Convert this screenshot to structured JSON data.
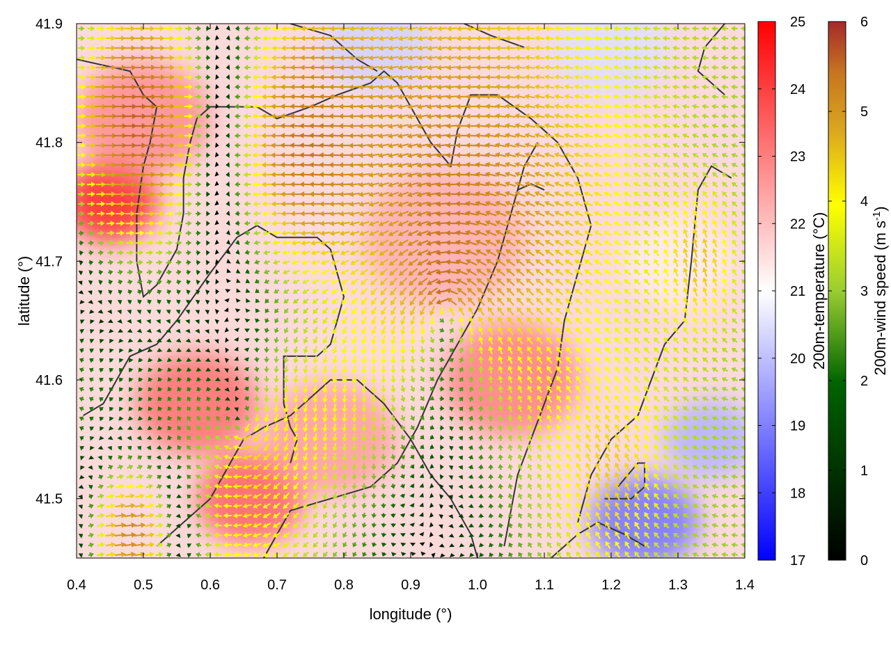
{
  "chart_data": {
    "type": "heatmap",
    "subtype": "vector-field-over-temperature-field",
    "xlabel": "longitude (°)",
    "ylabel": "latitude (°)",
    "xlim": [
      0.4,
      1.4
    ],
    "ylim": [
      41.45,
      41.9
    ],
    "x_ticks": [
      "0.4",
      "0.5",
      "0.6",
      "0.7",
      "0.8",
      "0.9",
      "1.0",
      "1.1",
      "1.2",
      "1.3",
      "1.4"
    ],
    "y_ticks": [
      "41.5",
      "41.6",
      "41.7",
      "41.8",
      "41.9"
    ],
    "grid": false,
    "temperature_colorbar": {
      "label": "200m-temperature (°C)",
      "range": [
        17,
        25
      ],
      "ticks": [
        "17",
        "18",
        "19",
        "20",
        "21",
        "22",
        "23",
        "24",
        "25"
      ],
      "colors": [
        "#0000ff",
        "#ffffff",
        "#ff0000"
      ]
    },
    "wind_colorbar": {
      "label": "200m-wind speed (m s-1)",
      "range": [
        0,
        6
      ],
      "ticks": [
        "0",
        "1",
        "2",
        "3",
        "4",
        "5",
        "6"
      ],
      "colors": [
        "#000000",
        "#006400",
        "#9acd32",
        "#ffff00",
        "#daa520",
        "#c87820",
        "#a52a2a"
      ]
    },
    "temperature_blobs": [
      {
        "lon": 0.45,
        "lat": 41.75,
        "r": 0.07,
        "t": 24.4
      },
      {
        "lon": 0.5,
        "lat": 41.82,
        "r": 0.1,
        "t": 22.8
      },
      {
        "lon": 0.58,
        "lat": 41.58,
        "r": 0.09,
        "t": 23.3
      },
      {
        "lon": 0.66,
        "lat": 41.5,
        "r": 0.08,
        "t": 23.5
      },
      {
        "lon": 1.05,
        "lat": 41.6,
        "r": 0.1,
        "t": 23.0
      },
      {
        "lon": 0.95,
        "lat": 41.72,
        "r": 0.12,
        "t": 22.3
      },
      {
        "lon": 0.78,
        "lat": 41.55,
        "r": 0.1,
        "t": 22.5
      },
      {
        "lon": 1.25,
        "lat": 41.48,
        "r": 0.08,
        "t": 18.8
      },
      {
        "lon": 1.35,
        "lat": 41.55,
        "r": 0.07,
        "t": 19.8
      },
      {
        "lon": 0.85,
        "lat": 41.88,
        "r": 0.08,
        "t": 20.3
      },
      {
        "lon": 1.2,
        "lat": 41.88,
        "r": 0.09,
        "t": 20.5
      },
      {
        "lon": 1.3,
        "lat": 41.7,
        "r": 0.08,
        "t": 21.3
      }
    ],
    "wind_vortices": [
      {
        "lon": 0.95,
        "lat": 41.66,
        "strength": 2.2,
        "r": 0.28
      },
      {
        "lon": 0.65,
        "lat": 41.56,
        "strength": -1.4,
        "r": 0.22
      }
    ],
    "background_flow": {
      "u": -2.0,
      "v": 0.0
    },
    "jets": [
      {
        "lon": 0.5,
        "lat": 41.82,
        "u": 5.5,
        "v": 0.0,
        "r": 0.15
      },
      {
        "lon": 0.75,
        "lat": 41.8,
        "u": -5.0,
        "v": 0.3,
        "r": 0.13
      },
      {
        "lon": 1.2,
        "lat": 41.52,
        "u": -1.5,
        "v": 3.2,
        "r": 0.1
      },
      {
        "lon": 0.48,
        "lat": 41.47,
        "u": 4.5,
        "v": 0.5,
        "r": 0.08
      },
      {
        "lon": 1.33,
        "lat": 41.7,
        "u": -1.0,
        "v": 3.5,
        "r": 0.08
      }
    ],
    "coastline": [
      [
        [
          0.4,
          41.87
        ],
        [
          0.48,
          41.86
        ],
        [
          0.5,
          41.84
        ],
        [
          0.52,
          41.83
        ],
        [
          0.51,
          41.8
        ],
        [
          0.5,
          41.78
        ],
        [
          0.49,
          41.74
        ],
        [
          0.49,
          41.7
        ],
        [
          0.5,
          41.67
        ],
        [
          0.52,
          41.68
        ],
        [
          0.55,
          41.71
        ],
        [
          0.56,
          41.74
        ],
        [
          0.56,
          41.77
        ],
        [
          0.57,
          41.8
        ],
        [
          0.58,
          41.82
        ],
        [
          0.6,
          41.83
        ],
        [
          0.67,
          41.83
        ],
        [
          0.7,
          41.82
        ],
        [
          0.75,
          41.83
        ],
        [
          0.79,
          41.84
        ],
        [
          0.84,
          41.85
        ],
        [
          0.86,
          41.86
        ],
        [
          0.88,
          41.85
        ],
        [
          0.9,
          41.83
        ],
        [
          0.93,
          41.8
        ],
        [
          0.96,
          41.78
        ],
        [
          0.97,
          41.81
        ],
        [
          0.99,
          41.84
        ],
        [
          1.03,
          41.84
        ],
        [
          1.08,
          41.82
        ],
        [
          1.12,
          41.8
        ],
        [
          1.15,
          41.77
        ],
        [
          1.17,
          41.73
        ],
        [
          1.15,
          41.69
        ],
        [
          1.13,
          41.65
        ],
        [
          1.12,
          41.61
        ],
        [
          1.1,
          41.58
        ],
        [
          1.08,
          41.55
        ],
        [
          1.06,
          41.52
        ],
        [
          1.05,
          41.49
        ],
        [
          1.04,
          41.46
        ]
      ],
      [
        [
          0.41,
          41.57
        ],
        [
          0.44,
          41.58
        ],
        [
          0.46,
          41.6
        ],
        [
          0.48,
          41.62
        ],
        [
          0.52,
          41.63
        ],
        [
          0.55,
          41.65
        ],
        [
          0.6,
          41.69
        ],
        [
          0.64,
          41.72
        ],
        [
          0.67,
          41.73
        ],
        [
          0.7,
          41.72
        ],
        [
          0.74,
          41.72
        ],
        [
          0.76,
          41.72
        ],
        [
          0.78,
          41.71
        ],
        [
          0.79,
          41.69
        ],
        [
          0.8,
          41.67
        ],
        [
          0.79,
          41.65
        ],
        [
          0.78,
          41.63
        ],
        [
          0.76,
          41.62
        ],
        [
          0.73,
          41.62
        ],
        [
          0.71,
          41.62
        ],
        [
          0.71,
          41.58
        ],
        [
          0.72,
          41.56
        ],
        [
          0.73,
          41.55
        ],
        [
          0.72,
          41.53
        ]
      ],
      [
        [
          0.52,
          41.46
        ],
        [
          0.56,
          41.48
        ],
        [
          0.6,
          41.5
        ],
        [
          0.62,
          41.52
        ],
        [
          0.65,
          41.55
        ],
        [
          0.68,
          41.56
        ],
        [
          0.72,
          41.57
        ],
        [
          0.78,
          41.6
        ],
        [
          0.82,
          41.6
        ],
        [
          0.86,
          41.58
        ],
        [
          0.9,
          41.55
        ],
        [
          0.93,
          41.52
        ],
        [
          0.96,
          41.5
        ],
        [
          0.99,
          41.47
        ],
        [
          1.0,
          41.45
        ]
      ],
      [
        [
          0.68,
          41.45
        ],
        [
          0.7,
          41.47
        ],
        [
          0.72,
          41.49
        ],
        [
          0.78,
          41.5
        ],
        [
          0.84,
          41.51
        ],
        [
          0.88,
          41.53
        ],
        [
          0.91,
          41.56
        ],
        [
          0.94,
          41.6
        ],
        [
          0.97,
          41.63
        ],
        [
          1.0,
          41.66
        ],
        [
          1.03,
          41.7
        ],
        [
          1.05,
          41.74
        ],
        [
          1.07,
          41.78
        ],
        [
          1.09,
          41.8
        ]
      ],
      [
        [
          1.11,
          41.45
        ],
        [
          1.15,
          41.47
        ],
        [
          1.18,
          41.48
        ],
        [
          1.22,
          41.47
        ],
        [
          1.25,
          41.46
        ]
      ],
      [
        [
          1.19,
          41.5
        ],
        [
          1.23,
          41.5
        ],
        [
          1.25,
          41.51
        ],
        [
          1.25,
          41.53
        ],
        [
          1.24,
          41.53
        ],
        [
          1.21,
          41.51
        ]
      ],
      [
        [
          1.37,
          41.9
        ],
        [
          1.34,
          41.88
        ],
        [
          1.33,
          41.86
        ],
        [
          1.35,
          41.85
        ],
        [
          1.37,
          41.84
        ]
      ],
      [
        [
          1.38,
          41.77
        ],
        [
          1.35,
          41.78
        ],
        [
          1.33,
          41.76
        ],
        [
          1.32,
          41.7
        ],
        [
          1.31,
          41.65
        ],
        [
          1.28,
          41.63
        ],
        [
          1.26,
          41.6
        ],
        [
          1.24,
          41.57
        ],
        [
          1.2,
          41.55
        ],
        [
          1.17,
          41.52
        ],
        [
          1.15,
          41.48
        ]
      ],
      [
        [
          0.72,
          41.9
        ],
        [
          0.78,
          41.89
        ],
        [
          0.82,
          41.87
        ],
        [
          0.85,
          41.86
        ]
      ],
      [
        [
          0.98,
          41.9
        ],
        [
          1.02,
          41.89
        ],
        [
          1.07,
          41.88
        ]
      ],
      [
        [
          1.06,
          41.76
        ],
        [
          1.08,
          41.765
        ],
        [
          1.1,
          41.76
        ]
      ]
    ]
  }
}
